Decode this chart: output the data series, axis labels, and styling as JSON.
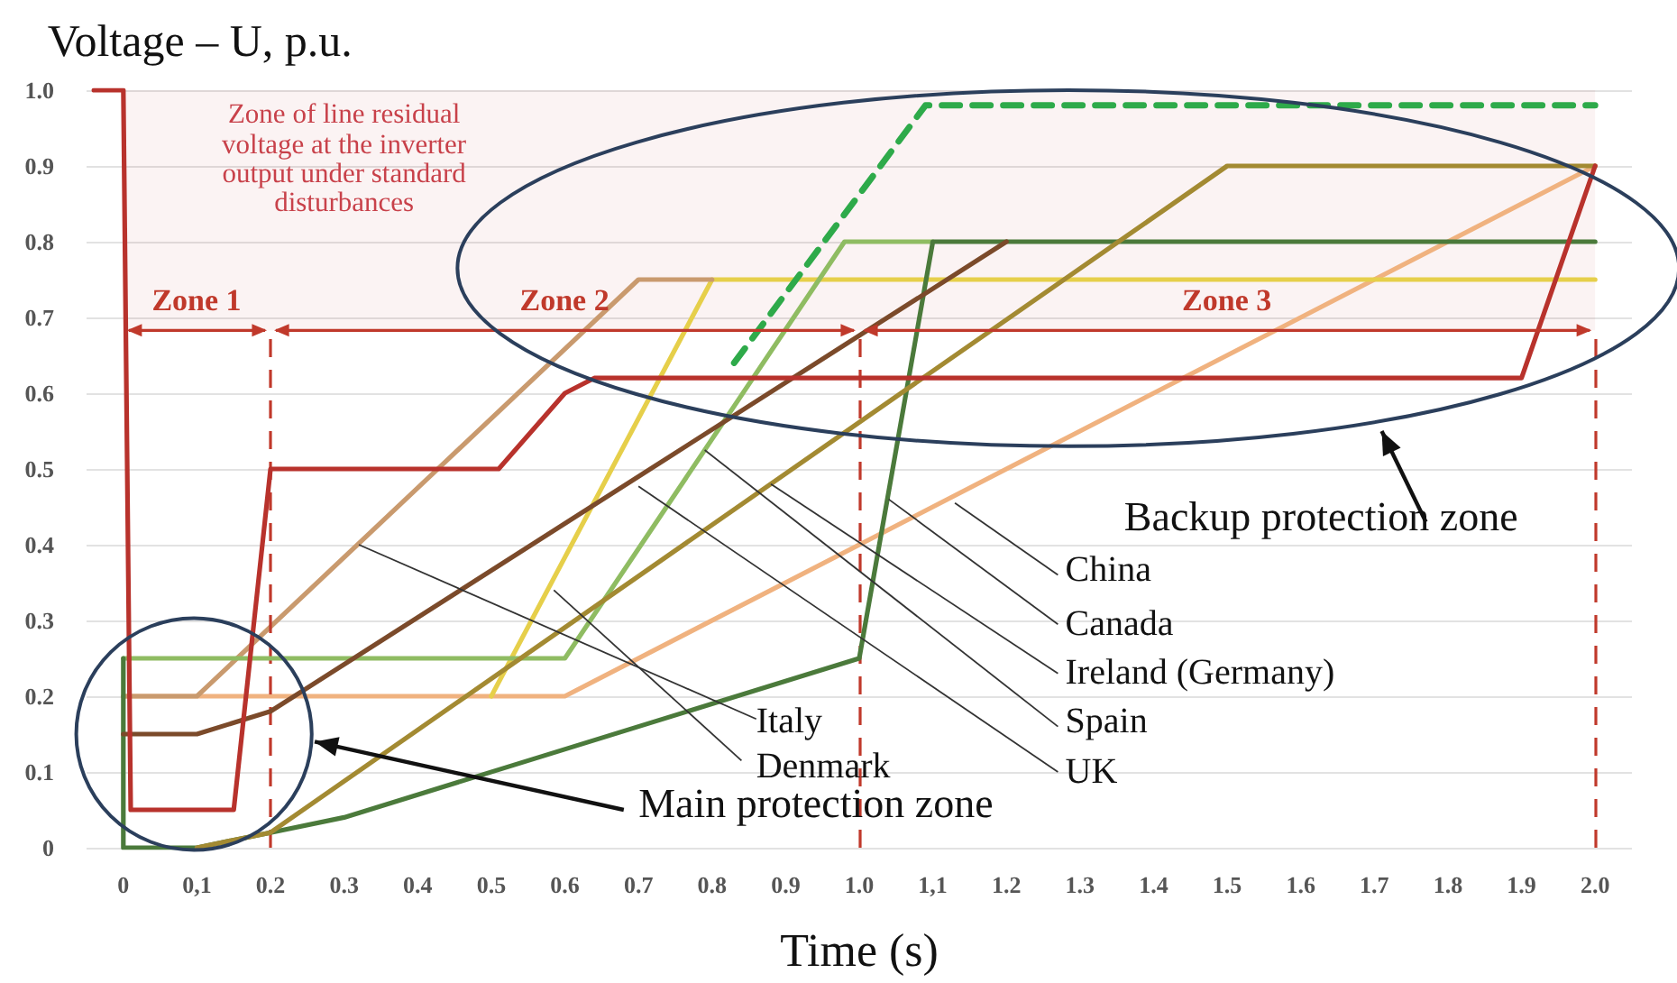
{
  "chart_data": {
    "type": "line",
    "xlabel": "Time (s)",
    "ylabel": "Voltage – U, p.u.",
    "xlim": [
      -0.05,
      2.05
    ],
    "ylim": [
      0,
      1.0
    ],
    "xticks": [
      0,
      {
        "value": 0.1,
        "label": "0,1"
      },
      0.2,
      0.3,
      0.4,
      0.5,
      0.6,
      0.7,
      0.8,
      0.9,
      {
        "value": 1,
        "label": "1.0"
      },
      {
        "value": 1.1,
        "label": "1,1"
      },
      1.2,
      1.3,
      1.4,
      1.5,
      1.6,
      1.7,
      1.8,
      1.9,
      {
        "value": 2,
        "label": "2.0"
      }
    ],
    "yticks": [
      0,
      0.1,
      0.2,
      0.3,
      0.4,
      0.5,
      0.6,
      0.7,
      0.8,
      0.9,
      {
        "value": 1,
        "label": "1.0"
      }
    ],
    "grid": "y",
    "marker": "none",
    "line_style": "solid",
    "series": [
      {
        "color": "#f0b27f",
        "x": [
          0,
          0.6,
          2.0
        ],
        "values": [
          0.2,
          0.2,
          0.9
        ]
      },
      {
        "color": "#e6cf4a",
        "x": [
          0.5,
          0.8,
          2.0
        ],
        "values": [
          0.2,
          0.75,
          0.75
        ]
      },
      {
        "color": "#c99a6e",
        "x": [
          0,
          0.1,
          0.7,
          0.8
        ],
        "values": [
          0.2,
          0.2,
          0.75,
          0.75
        ]
      },
      {
        "color": "#8fbc62",
        "x": [
          0,
          0.6,
          0.98,
          1.1
        ],
        "values": [
          0.25,
          0.25,
          0.8,
          0.8
        ]
      },
      {
        "color": "#4b7a3b",
        "x": [
          0,
          0,
          0.1,
          0.2,
          0.3,
          1.0,
          1.1,
          2.0
        ],
        "values": [
          0.25,
          0,
          0,
          0.02,
          0.04,
          0.25,
          0.8,
          0.8
        ]
      },
      {
        "color": "#7b4a2a",
        "x": [
          0,
          0.1,
          0.2,
          1.2
        ],
        "values": [
          0.15,
          0.15,
          0.18,
          0.8
        ]
      },
      {
        "color": "#a38a32",
        "x": [
          0.1,
          0.2,
          1.5,
          2.0
        ],
        "values": [
          0,
          0.02,
          0.9,
          0.9
        ]
      },
      {
        "color": "#2eaa4a",
        "line_style": "dashed",
        "x": [
          0.83,
          1.09,
          2.0
        ],
        "values": [
          0.64,
          0.98,
          0.98
        ]
      },
      {
        "color": "#b8322c",
        "x": [
          -0.04,
          0,
          0.01,
          0.15,
          0.2,
          0.51,
          0.6,
          0.64,
          1.9,
          2.0
        ],
        "values": [
          1.0,
          1.0,
          0.05,
          0.05,
          0.5,
          0.5,
          0.6,
          0.62,
          0.62,
          0.9
        ]
      }
    ],
    "ref_lines": [
      {
        "axis": "x",
        "value": 0.2,
        "color": "#c0392b",
        "line_style": "dashed"
      },
      {
        "axis": "x",
        "value": 1.0,
        "color": "#c0392b",
        "line_style": "dashed"
      },
      {
        "axis": "x",
        "value": 2.0,
        "color": "#c0392b",
        "line_style": "dashed"
      }
    ],
    "annotations": [
      "Zone of line residual voltage at the inverter output under standard disturbances",
      "Main protection zone",
      "Backup protection zone",
      {
        "text": "Italy",
        "x": 0.32,
        "y": 0.4
      },
      {
        "text": "Denmark",
        "x": 0.585,
        "y": 0.34
      },
      {
        "text": "China",
        "x": 1.13,
        "y": 0.455
      },
      {
        "text": "Canada",
        "x": 1.04,
        "y": 0.46
      },
      {
        "text": "Ireland (Germany)",
        "x": 0.88,
        "y": 0.48
      },
      {
        "text": "Spain",
        "x": 0.79,
        "y": 0.525
      },
      {
        "text": "UK",
        "x": 0.7,
        "y": 0.477
      }
    ],
    "bands": [
      {
        "axis": "x",
        "from": 0,
        "to": 0.2,
        "label": "Zone 1",
        "color": "#c0392b"
      },
      {
        "axis": "x",
        "from": 0.2,
        "to": 1.0,
        "label": "Zone 2",
        "color": "#c0392b"
      },
      {
        "axis": "x",
        "from": 1.0,
        "to": 2.0,
        "label": "Zone 3",
        "color": "#c0392b"
      }
    ]
  }
}
